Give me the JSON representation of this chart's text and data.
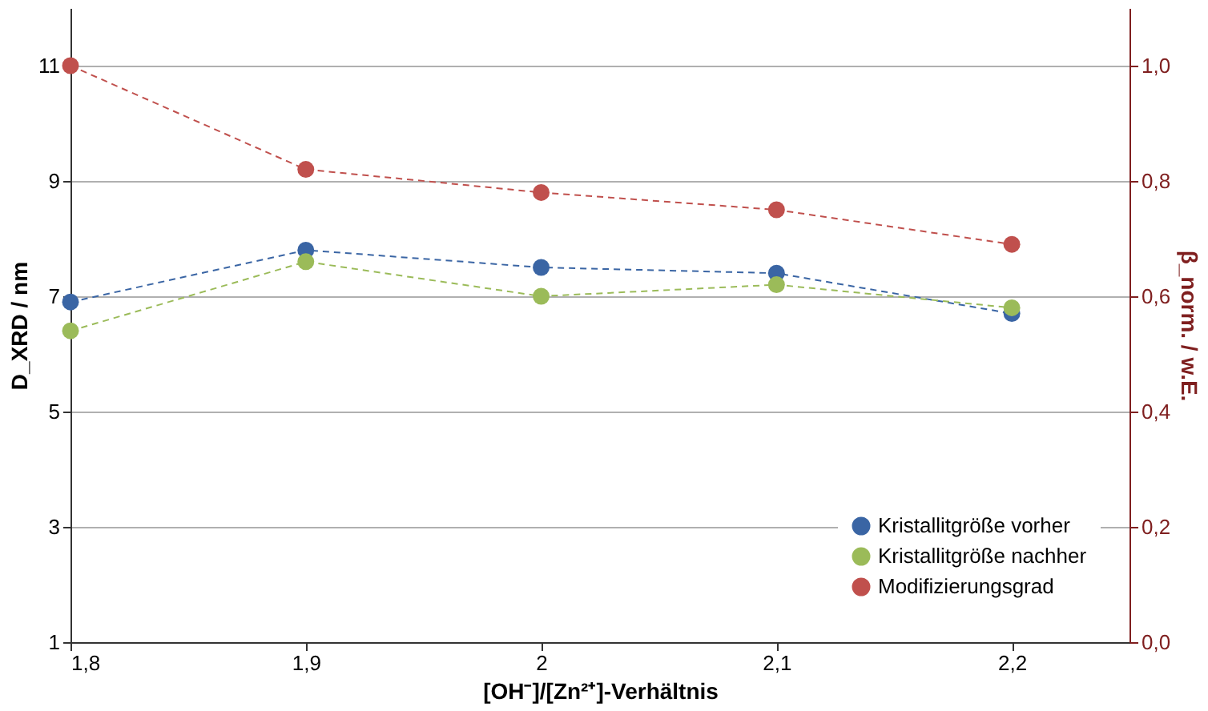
{
  "chart_data": {
    "type": "line",
    "xlabel": "[OH⁻]/[Zn²⁺]-Verhältnis",
    "ylabel": "D_XRD / nm",
    "y2label": "β_norm. / w.E.",
    "x": [
      1.8,
      1.9,
      2.0,
      2.1,
      2.2
    ],
    "xlim": [
      1.8,
      2.25
    ],
    "xticks": [
      {
        "value": 1.8,
        "label": "1,8"
      },
      {
        "value": 1.9,
        "label": "1,9"
      },
      2,
      {
        "value": 2.1,
        "label": "2,1"
      },
      {
        "value": 2.2,
        "label": "2,2"
      }
    ],
    "ylim": [
      1,
      12
    ],
    "yticks": [
      1,
      3,
      5,
      7,
      9,
      11
    ],
    "y2lim": [
      0,
      1.1
    ],
    "y2ticks": [
      {
        "value": 0,
        "label": "0,0"
      },
      {
        "value": 0.2,
        "label": "0,2"
      },
      {
        "value": 0.4,
        "label": "0,4"
      },
      {
        "value": 0.6,
        "label": "0,6"
      },
      {
        "value": 0.8,
        "label": "0,8"
      },
      {
        "value": 1.0,
        "label": "1,0"
      }
    ],
    "series": [
      {
        "name": "Kristallitgröße vorher",
        "color": "#3a65a4",
        "values": [
          6.9,
          7.8,
          7.5,
          7.4,
          6.7
        ]
      },
      {
        "name": "Kristallitgröße nachher",
        "color": "#9bbb59",
        "values": [
          6.4,
          7.6,
          7.0,
          7.2,
          6.8
        ]
      },
      {
        "name": "Modifizierungsgrad",
        "color": "#c0504d",
        "axis": "y2",
        "values": [
          1.0,
          0.82,
          0.78,
          0.75,
          0.69
        ]
      }
    ],
    "grid": "y",
    "legend": "bottom right",
    "marker": "circle",
    "line_style": "dashed"
  }
}
